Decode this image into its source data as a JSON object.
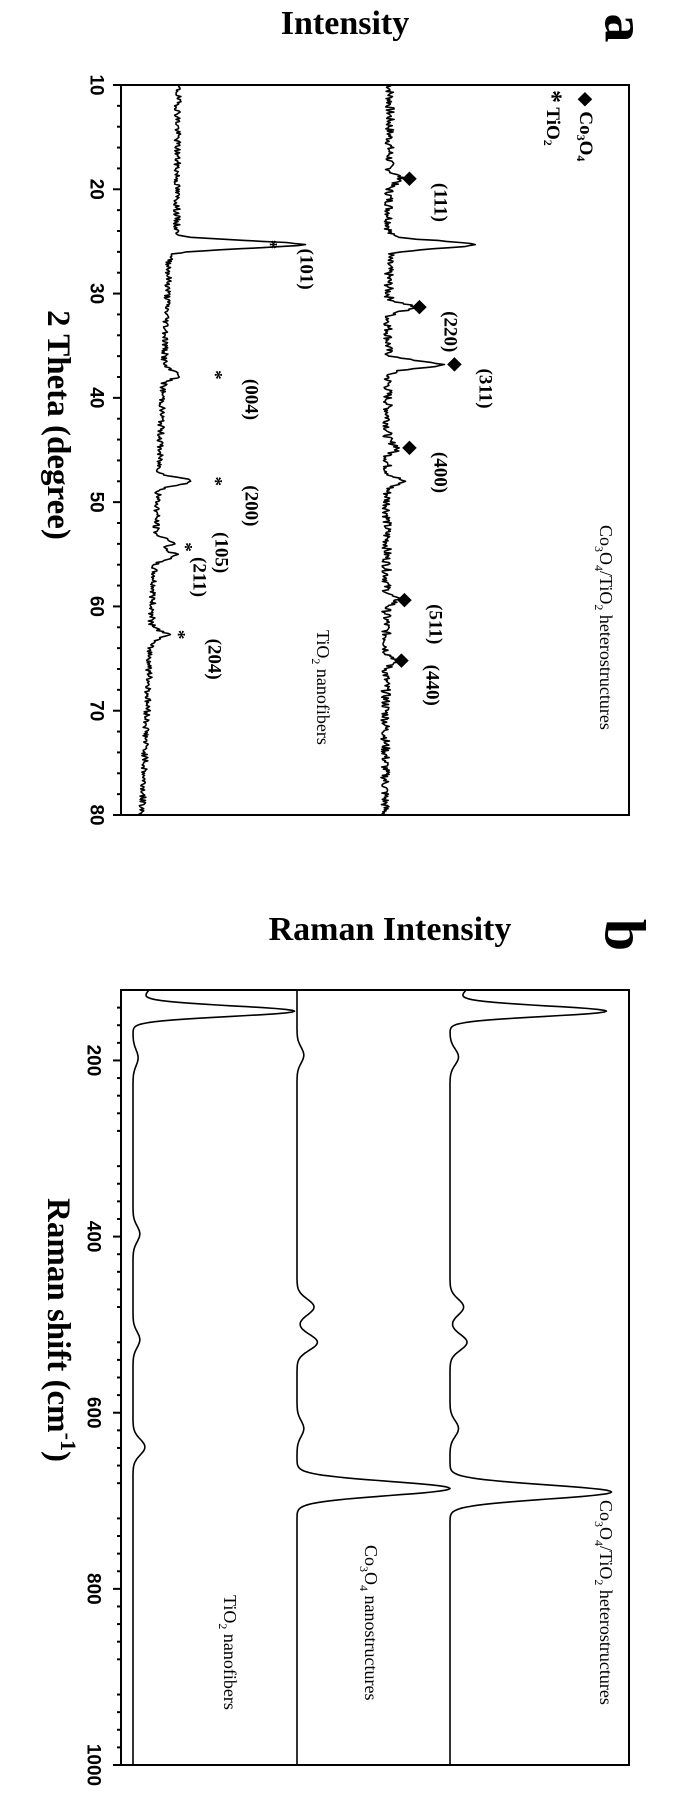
{
  "panels": [
    {
      "letter": "a",
      "ylabel": "Intensity",
      "xlabel": "2 Theta (degree)"
    },
    {
      "letter": "b",
      "ylabel": "Raman Intensity",
      "xlabel_main": "Raman shift (cm",
      "xlabel_sup": "-1",
      "xlabel_end": ")"
    }
  ],
  "chart_data": [
    {
      "type": "line",
      "panel": "a",
      "xlabel": "2 Theta (degree)",
      "ylabel": "Intensity",
      "xlim": [
        10,
        80
      ],
      "x_ticks": [
        10,
        20,
        30,
        40,
        50,
        60,
        70,
        80
      ],
      "legend": [
        {
          "symbol": "◆",
          "text": "Co",
          "sub1": "3",
          "text2": "O",
          "sub2": "4"
        },
        {
          "symbol": "*",
          "text": "TiO",
          "sub1": "2"
        }
      ],
      "series": [
        {
          "name_parts": [
            "Co",
            "3",
            "O",
            "4",
            "/TiO",
            "2",
            " heterostructures"
          ],
          "peaks": [
            {
              "x": 19.0,
              "h": 0.06
            },
            {
              "x": 25.3,
              "h": 0.42
            },
            {
              "x": 31.3,
              "h": 0.12
            },
            {
              "x": 36.8,
              "h": 0.25
            },
            {
              "x": 44.8,
              "h": 0.05
            },
            {
              "x": 48.0,
              "h": 0.07
            },
            {
              "x": 59.4,
              "h": 0.05
            },
            {
              "x": 65.2,
              "h": 0.05
            }
          ]
        },
        {
          "name_parts": [
            "TiO",
            "2",
            " nanofibers"
          ],
          "peaks": [
            {
              "x": 25.3,
              "h": 0.6
            },
            {
              "x": 37.8,
              "h": 0.08
            },
            {
              "x": 48.0,
              "h": 0.16
            },
            {
              "x": 53.9,
              "h": 0.09
            },
            {
              "x": 55.1,
              "h": 0.1
            },
            {
              "x": 62.7,
              "h": 0.08
            }
          ]
        }
      ],
      "annotations": [
        {
          "series": 0,
          "symbol": "◆",
          "x": 19.0,
          "label": "(111)"
        },
        {
          "series": 0,
          "symbol": "◆",
          "x": 31.3,
          "label": "(220)"
        },
        {
          "series": 0,
          "symbol": "◆",
          "x": 36.8,
          "label": "(311)"
        },
        {
          "series": 0,
          "symbol": "◆",
          "x": 44.8,
          "label": "(400)"
        },
        {
          "series": 0,
          "symbol": "◆",
          "x": 59.4,
          "label": "(511)"
        },
        {
          "series": 0,
          "symbol": "◆",
          "x": 65.2,
          "label": "(440)"
        },
        {
          "series": 1,
          "symbol": "*",
          "x": 25.3,
          "label": "(101)"
        },
        {
          "series": 1,
          "symbol": "*",
          "x": 37.8,
          "label": "(004)"
        },
        {
          "series": 1,
          "symbol": "*",
          "x": 48.0,
          "label": "(200)"
        },
        {
          "series": 1,
          "symbol": "*",
          "x": 54.3,
          "label": "(105)",
          "label2": "(211)"
        },
        {
          "series": 1,
          "symbol": "*",
          "x": 62.7,
          "label": "(204)"
        }
      ]
    },
    {
      "type": "line",
      "panel": "b",
      "xlabel": "Raman shift (cm-1)",
      "ylabel": "Raman Intensity",
      "xlim": [
        120,
        1000
      ],
      "x_ticks": [
        200,
        400,
        600,
        800,
        1000
      ],
      "series": [
        {
          "name_parts": [
            "Co",
            "3",
            "O",
            "4",
            "/TiO",
            "2",
            " heterostructures"
          ],
          "peaks": [
            {
              "x": 144,
              "h": 0.92
            },
            {
              "x": 196,
              "h": 0.05
            },
            {
              "x": 480,
              "h": 0.08
            },
            {
              "x": 520,
              "h": 0.1
            },
            {
              "x": 618,
              "h": 0.05
            },
            {
              "x": 690,
              "h": 0.95
            }
          ]
        },
        {
          "name_parts": [
            "Co",
            "3",
            "O",
            "4",
            " nanostructures"
          ],
          "peaks": [
            {
              "x": 194,
              "h": 0.04
            },
            {
              "x": 480,
              "h": 0.1
            },
            {
              "x": 520,
              "h": 0.12
            },
            {
              "x": 618,
              "h": 0.04
            },
            {
              "x": 686,
              "h": 0.9
            }
          ]
        },
        {
          "name_parts": [
            "TiO",
            "2",
            " nanofibers"
          ],
          "peaks": [
            {
              "x": 144,
              "h": 0.95
            },
            {
              "x": 197,
              "h": 0.03
            },
            {
              "x": 397,
              "h": 0.04
            },
            {
              "x": 517,
              "h": 0.04
            },
            {
              "x": 639,
              "h": 0.07
            }
          ]
        }
      ]
    }
  ]
}
